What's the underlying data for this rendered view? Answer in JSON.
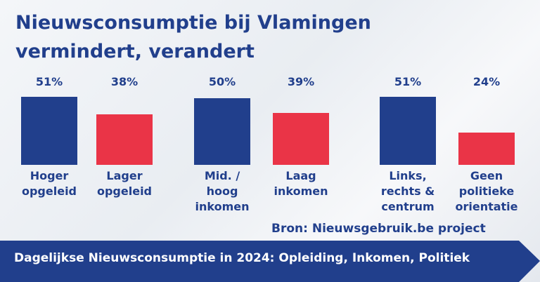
{
  "chart_data": {
    "type": "bar",
    "title": "Nieuwsconsumptie bij Vlamingen vermindert, verandert",
    "categories": [
      "Hoger opgeleid",
      "Lager opgeleid",
      "Mid. / hoog inkomen",
      "Laag inkomen",
      "Links, rechts & centrum",
      "Geen politieke orientatie"
    ],
    "values": [
      51,
      38,
      50,
      39,
      51,
      24
    ],
    "value_labels": [
      "51%",
      "38%",
      "50%",
      "39%",
      "51%",
      "24%"
    ],
    "colors": [
      "#213f8c",
      "#ea3447",
      "#213f8c",
      "#ea3447",
      "#213f8c",
      "#ea3447"
    ],
    "source": "Bron: Nieuwsgebruik.be project",
    "banner": "Dagelijkse Nieuwsconsumptie in 2024: Opleiding, Inkomen, Politiek"
  }
}
